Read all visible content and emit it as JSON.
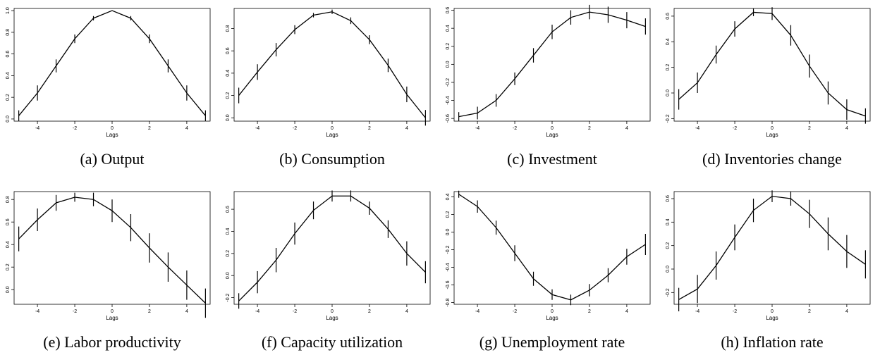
{
  "chart_data": [
    {
      "type": "line",
      "caption": "(a) Output",
      "x_label": "Lags",
      "x": [
        -5,
        -4,
        -3,
        -2,
        -1,
        0,
        1,
        2,
        3,
        4,
        5
      ],
      "values": [
        0.03,
        0.24,
        0.49,
        0.74,
        0.93,
        1.0,
        0.93,
        0.74,
        0.49,
        0.24,
        0.03
      ],
      "errors": [
        0.05,
        0.07,
        0.06,
        0.04,
        0.02,
        0,
        0.02,
        0.04,
        0.06,
        0.07,
        0.05
      ],
      "color": "#000000",
      "xlim": [
        -5.25,
        5.25
      ],
      "xticks": [
        -4,
        -2,
        0,
        2,
        4
      ],
      "ylim": [
        -0.02,
        1.02
      ],
      "yticks": [
        {
          "value": 0,
          "label": "0.0"
        },
        0.2,
        0.4,
        0.6,
        0.8,
        {
          "value": 1,
          "label": "1.0"
        }
      ]
    },
    {
      "type": "line",
      "caption": "(b) Consumption",
      "x_label": "Lags",
      "x": [
        -5,
        -4,
        -3,
        -2,
        -1,
        0,
        1,
        2,
        3,
        4,
        5
      ],
      "values": [
        0.2,
        0.41,
        0.61,
        0.79,
        0.92,
        0.95,
        0.87,
        0.7,
        0.47,
        0.21,
        0.0
      ],
      "errors": [
        0.07,
        0.07,
        0.06,
        0.04,
        0.02,
        0.02,
        0.03,
        0.04,
        0.06,
        0.07,
        0.07
      ],
      "color": "#000000",
      "xlim": [
        -5.25,
        5.25
      ],
      "xticks": [
        -4,
        -2,
        0,
        2,
        4
      ],
      "ylim": [
        -0.03,
        0.98
      ],
      "yticks": [
        {
          "value": 0,
          "label": "0.0"
        },
        0.2,
        0.4,
        0.6,
        0.8
      ]
    },
    {
      "type": "line",
      "caption": "(c) Investment",
      "x_label": "Lags",
      "x": [
        -5,
        -4,
        -3,
        -2,
        -1,
        0,
        1,
        2,
        3,
        4,
        5
      ],
      "values": [
        -0.58,
        -0.54,
        -0.4,
        -0.16,
        0.1,
        0.36,
        0.52,
        0.58,
        0.55,
        0.49,
        0.42
      ],
      "errors": [
        0.05,
        0.07,
        0.07,
        0.07,
        0.08,
        0.08,
        0.08,
        0.08,
        0.09,
        0.09,
        0.09
      ],
      "color": "#000000",
      "xlim": [
        -5.25,
        5.25
      ],
      "xticks": [
        -4,
        -2,
        0,
        2,
        4
      ],
      "ylim": [
        -0.63,
        0.62
      ],
      "yticks": [
        -0.6,
        -0.4,
        -0.2,
        {
          "value": 0,
          "label": "0.0"
        },
        0.2,
        0.4,
        0.6
      ]
    },
    {
      "type": "line",
      "caption": "(d) Inventories change",
      "x_label": "Lags",
      "x": [
        -5,
        -4,
        -3,
        -2,
        -1,
        0,
        1,
        2,
        3,
        4,
        5
      ],
      "values": [
        -0.05,
        0.08,
        0.3,
        0.5,
        0.63,
        0.62,
        0.45,
        0.21,
        0.0,
        -0.13,
        -0.18
      ],
      "errors": [
        0.08,
        0.08,
        0.07,
        0.06,
        0.03,
        0.05,
        0.08,
        0.09,
        0.09,
        0.08,
        0.06
      ],
      "color": "#000000",
      "xlim": [
        -5.25,
        5.25
      ],
      "xticks": [
        -4,
        -2,
        0,
        2,
        4
      ],
      "ylim": [
        -0.22,
        0.66
      ],
      "yticks": [
        -0.2,
        {
          "value": 0,
          "label": "0.0"
        },
        0.2,
        0.4,
        0.6
      ]
    },
    {
      "type": "line",
      "caption": "(e) Labor productivity",
      "x_label": "Lags",
      "x": [
        -5,
        -4,
        -3,
        -2,
        -1,
        0,
        1,
        2,
        3,
        4,
        5
      ],
      "values": [
        0.45,
        0.62,
        0.77,
        0.82,
        0.8,
        0.7,
        0.55,
        0.37,
        0.2,
        0.04,
        -0.12
      ],
      "errors": [
        0.11,
        0.1,
        0.07,
        0.04,
        0.06,
        0.1,
        0.12,
        0.13,
        0.13,
        0.13,
        0.13
      ],
      "color": "#000000",
      "xlim": [
        -5.25,
        5.25
      ],
      "xticks": [
        -4,
        -2,
        0,
        2,
        4
      ],
      "ylim": [
        -0.13,
        0.87
      ],
      "yticks": [
        {
          "value": 0,
          "label": "0.0"
        },
        0.2,
        0.4,
        0.6,
        0.8
      ]
    },
    {
      "type": "line",
      "caption": "(f) Capacity utilization",
      "x_label": "Lags",
      "x": [
        -5,
        -4,
        -3,
        -2,
        -1,
        0,
        1,
        2,
        3,
        4,
        5
      ],
      "values": [
        -0.23,
        -0.06,
        0.14,
        0.38,
        0.59,
        0.72,
        0.72,
        0.61,
        0.42,
        0.2,
        0.03
      ],
      "errors": [
        0.07,
        0.1,
        0.11,
        0.1,
        0.08,
        0.05,
        0.05,
        0.06,
        0.08,
        0.11,
        0.1
      ],
      "color": "#000000",
      "xlim": [
        -5.25,
        5.25
      ],
      "xticks": [
        -4,
        -2,
        0,
        2,
        4
      ],
      "ylim": [
        -0.26,
        0.76
      ],
      "yticks": [
        -0.2,
        {
          "value": 0,
          "label": "0.0"
        },
        0.2,
        0.4,
        0.6
      ]
    },
    {
      "type": "line",
      "caption": "(g) Unemployment rate",
      "x_label": "Lags",
      "x": [
        -5,
        -4,
        -3,
        -2,
        -1,
        0,
        1,
        2,
        3,
        4,
        5
      ],
      "values": [
        0.43,
        0.29,
        0.05,
        -0.24,
        -0.53,
        -0.71,
        -0.77,
        -0.66,
        -0.49,
        -0.28,
        -0.14
      ],
      "errors": [
        0.04,
        0.07,
        0.08,
        0.09,
        0.08,
        0.06,
        0.06,
        0.07,
        0.08,
        0.09,
        0.12
      ],
      "color": "#000000",
      "xlim": [
        -5.25,
        5.25
      ],
      "xticks": [
        -4,
        -2,
        0,
        2,
        4
      ],
      "ylim": [
        -0.82,
        0.46
      ],
      "yticks": [
        -0.8,
        -0.6,
        -0.4,
        -0.2,
        {
          "value": 0,
          "label": "0.0"
        },
        0.2,
        0.4
      ]
    },
    {
      "type": "line",
      "caption": "(h) Inflation rate",
      "x_label": "Lags",
      "x": [
        -5,
        -4,
        -3,
        -2,
        -1,
        0,
        1,
        2,
        3,
        4,
        5
      ],
      "values": [
        -0.26,
        -0.17,
        0.03,
        0.27,
        0.5,
        0.62,
        0.6,
        0.47,
        0.3,
        0.15,
        0.04
      ],
      "errors": [
        0.1,
        0.12,
        0.12,
        0.11,
        0.1,
        0.05,
        0.06,
        0.12,
        0.14,
        0.14,
        0.12
      ],
      "color": "#000000",
      "xlim": [
        -5.25,
        5.25
      ],
      "xticks": [
        -4,
        -2,
        0,
        2,
        4
      ],
      "ylim": [
        -0.3,
        0.66
      ],
      "yticks": [
        -0.2,
        {
          "value": 0,
          "label": "0.0"
        },
        0.2,
        0.4,
        0.6
      ]
    }
  ]
}
